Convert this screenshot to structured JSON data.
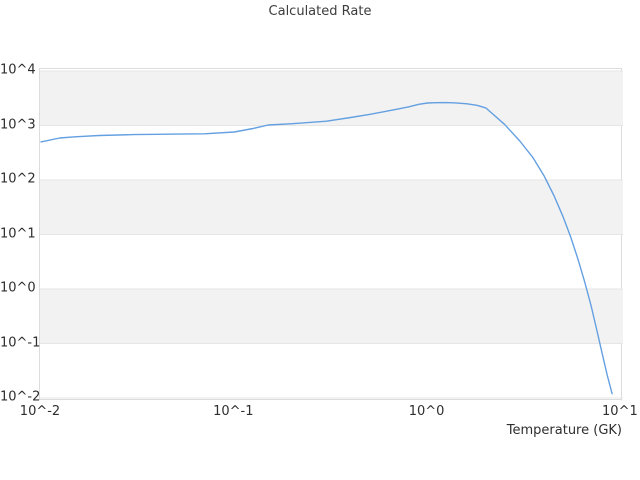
{
  "title": "Calculated Rate",
  "x_axis": {
    "label": "Temperature (GK)",
    "tick_labels": [
      "10^-2",
      "10^-1",
      "10^0",
      "10^1"
    ],
    "tick_values": [
      0.01,
      0.1,
      1,
      10
    ]
  },
  "y_axis": {
    "label": "",
    "tick_labels": [
      "10^4",
      "10^3",
      "10^2",
      "10^1",
      "10^0",
      "10^-1",
      "10^-2"
    ],
    "tick_values": [
      10000,
      1000,
      100,
      10,
      1,
      0.1,
      0.01
    ]
  },
  "colors": {
    "line": "#64a0e1",
    "band": "#f2f2f2",
    "grid": "#e6e6e6",
    "border": "#dcdcdc",
    "text": "#2e2e2e",
    "title_text": "#3d3d3d",
    "background": "#ffffff"
  },
  "chart_data": {
    "type": "line",
    "title": "Calculated Rate",
    "xlabel": "Temperature (GK)",
    "ylabel": "",
    "x_scale": "log",
    "y_scale": "log",
    "xlim": [
      0.01,
      10
    ],
    "ylim": [
      0.01,
      10000
    ],
    "grid": "alternating-horizontal-bands",
    "legend_position": "none",
    "series": [
      {
        "name": "calculated-rate",
        "x": [
          0.01,
          0.0125,
          0.015,
          0.02,
          0.03,
          0.04,
          0.05,
          0.07,
          0.1,
          0.125,
          0.15,
          0.2,
          0.3,
          0.4,
          0.5,
          0.6,
          0.7,
          0.8,
          0.9,
          1.0,
          1.1,
          1.25,
          1.4,
          1.6,
          1.8,
          2.0,
          2.5,
          3.0,
          3.5,
          4.0,
          4.5,
          5.0,
          5.5,
          6.0,
          6.5,
          7.0,
          7.5,
          8.0,
          8.5,
          9.0
        ],
        "y": [
          500,
          590,
          620,
          655,
          680,
          690,
          695,
          705,
          760,
          880,
          1020,
          1080,
          1200,
          1400,
          1600,
          1800,
          2000,
          2200,
          2450,
          2590,
          2620,
          2630,
          2600,
          2500,
          2350,
          2100,
          1050,
          520,
          260,
          120,
          52,
          22,
          9,
          3.5,
          1.35,
          0.5,
          0.18,
          0.065,
          0.026,
          0.012
        ]
      }
    ]
  }
}
